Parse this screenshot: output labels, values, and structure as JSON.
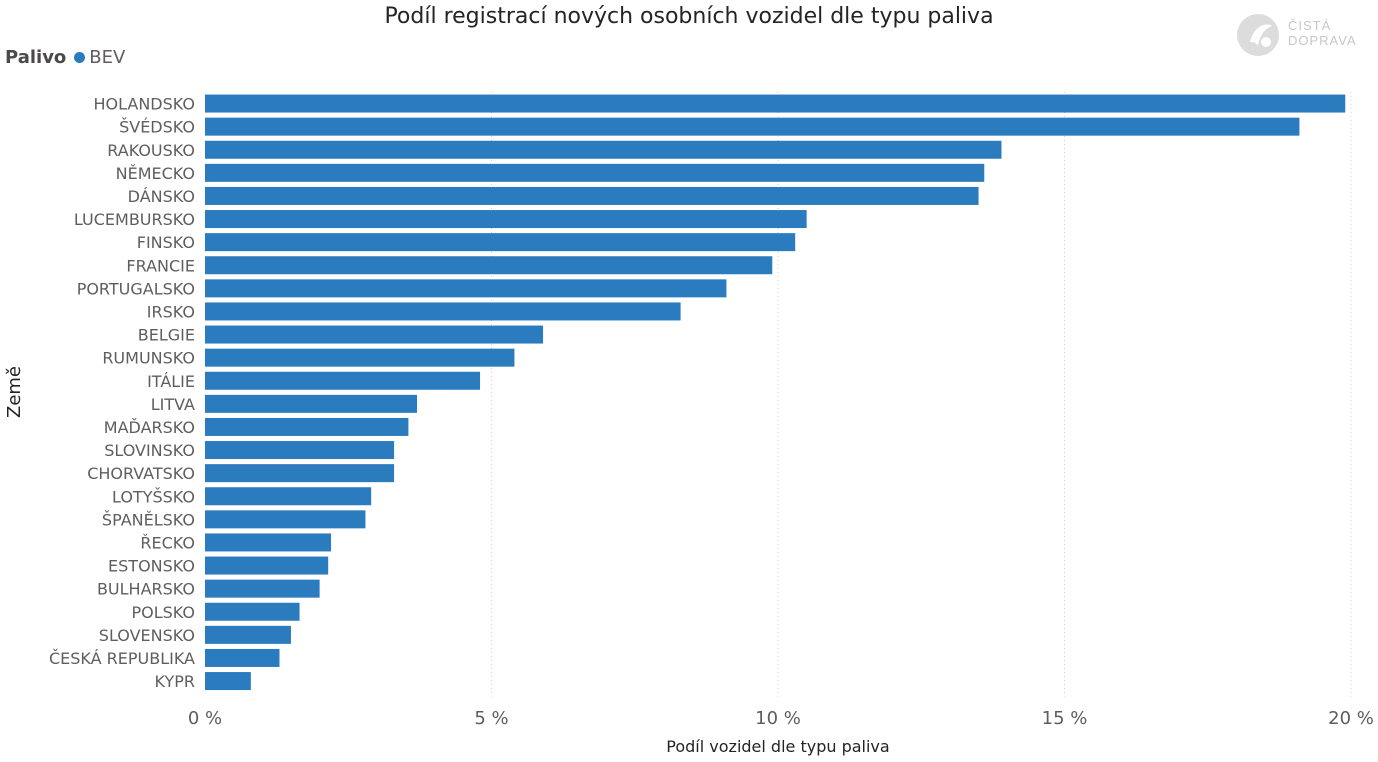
{
  "chart_data": {
    "type": "bar",
    "orientation": "horizontal",
    "title": "Podíl registrací nových osobních vozidel dle typu paliva",
    "xlabel": "Podíl vozidel dle typu paliva",
    "ylabel": "Země",
    "xlim": [
      0,
      20
    ],
    "xticks": [
      0,
      5,
      10,
      15,
      20
    ],
    "xtick_labels": [
      "0 %",
      "5 %",
      "10 %",
      "15 %",
      "20 %"
    ],
    "grid": "vertical dotted",
    "legend": {
      "title": "Palivo",
      "placement": "top-left",
      "entries": [
        "BEV"
      ]
    },
    "categories": [
      "HOLANDSKO",
      "ŠVÉDSKO",
      "RAKOUSKO",
      "NĚMECKO",
      "DÁNSKO",
      "LUCEMBURSKO",
      "FINSKO",
      "FRANCIE",
      "PORTUGALSKO",
      "IRSKO",
      "BELGIE",
      "RUMUNSKO",
      "ITÁLIE",
      "LITVA",
      "MAĎARSKO",
      "SLOVINSKO",
      "CHORVATSKO",
      "LOTYŠSKO",
      "ŠPANĚLSKO",
      "ŘECKO",
      "ESTONSKO",
      "BULHARSKO",
      "POLSKO",
      "SLOVENSKO",
      "ČESKÁ REPUBLIKA",
      "KYPR"
    ],
    "series": [
      {
        "name": "BEV",
        "color": "#2b7bbf",
        "values": [
          19.9,
          19.1,
          13.9,
          13.6,
          13.5,
          10.5,
          10.3,
          9.9,
          9.1,
          8.3,
          5.9,
          5.4,
          4.8,
          3.7,
          3.55,
          3.3,
          3.3,
          2.9,
          2.8,
          2.2,
          2.15,
          2.0,
          1.65,
          1.5,
          1.3,
          0.8
        ]
      }
    ]
  },
  "logo": {
    "line1": "ČISTÁ",
    "line2": "DOPRAVA"
  },
  "colors": {
    "bar": "#2b7bbf",
    "grid": "#d0d0d0",
    "text": "#605e5c"
  }
}
